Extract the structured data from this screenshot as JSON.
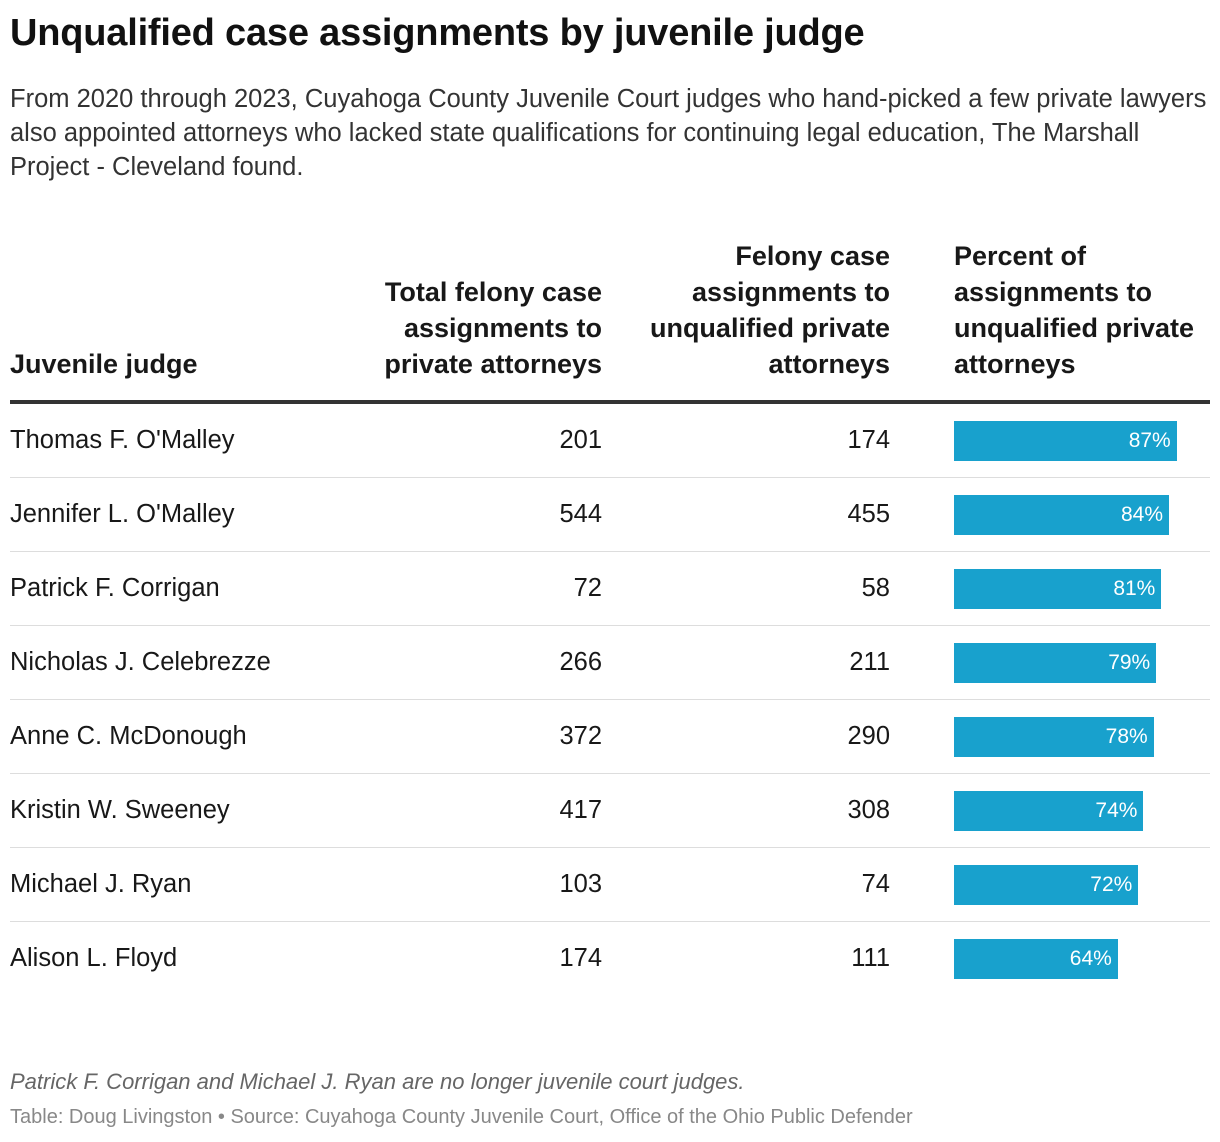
{
  "title": "Unqualified case assignments by juvenile judge",
  "subtitle": "From 2020 through 2023, Cuyahoga County Juvenile Court judges who hand-picked a few private lawyers also appointed attorneys who lacked state qualifications for continuing legal education, The Marshall Project - Cleveland found.",
  "colors": {
    "bar": "#18a1cd",
    "bar_label": "#ffffff"
  },
  "chart_data": {
    "type": "table",
    "columns": [
      "Juvenile judge",
      "Total felony case assignments to private attorneys",
      "Felony case assignments to unqualified private attorneys",
      "Percent of assignments to unqualified private attorneys"
    ],
    "rows": [
      {
        "judge": "Thomas F. O'Malley",
        "total": 201,
        "unqualified": 174,
        "percent": 87,
        "percent_label": "87%"
      },
      {
        "judge": "Jennifer L. O'Malley",
        "total": 544,
        "unqualified": 455,
        "percent": 84,
        "percent_label": "84%"
      },
      {
        "judge": "Patrick F. Corrigan",
        "total": 72,
        "unqualified": 58,
        "percent": 81,
        "percent_label": "81%"
      },
      {
        "judge": "Nicholas J. Celebrezze",
        "total": 266,
        "unqualified": 211,
        "percent": 79,
        "percent_label": "79%"
      },
      {
        "judge": "Anne C. McDonough",
        "total": 372,
        "unqualified": 290,
        "percent": 78,
        "percent_label": "78%"
      },
      {
        "judge": "Kristin W. Sweeney",
        "total": 417,
        "unqualified": 308,
        "percent": 74,
        "percent_label": "74%"
      },
      {
        "judge": "Michael J. Ryan",
        "total": 103,
        "unqualified": 74,
        "percent": 72,
        "percent_label": "72%"
      },
      {
        "judge": "Alison L. Floyd",
        "total": 174,
        "unqualified": 111,
        "percent": 64,
        "percent_label": "64%"
      }
    ]
  },
  "note": "Patrick F. Corrigan and Michael J. Ryan are no longer juvenile court judges.",
  "source": "Table: Doug Livingston • Source: Cuyahoga County Juvenile Court, Office of the Ohio Public Defender"
}
